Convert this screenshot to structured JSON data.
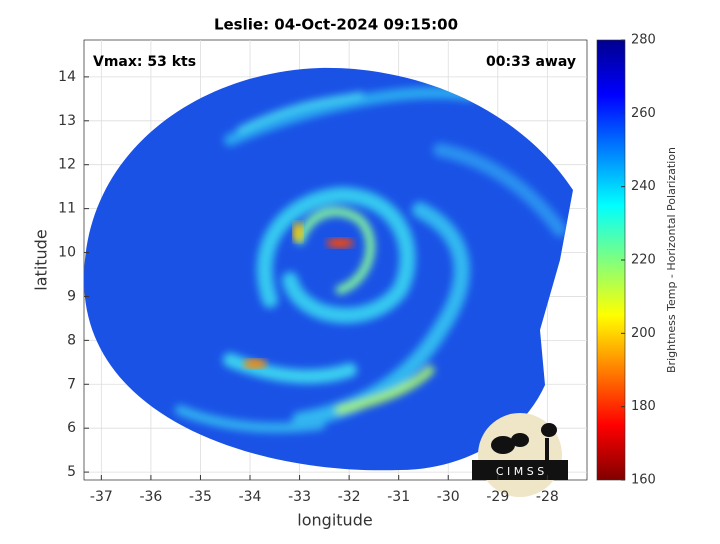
{
  "chart_data": {
    "type": "image",
    "title": "Leslie: 04-Oct-2024 09:15:00",
    "x_label": "longitude",
    "y_label": "latitude",
    "annotations": [
      "Vmax: 53 kts",
      "00:33 away"
    ],
    "xlim": [
      -37.35,
      -27.2
    ],
    "xticks": [
      -37,
      -36,
      -35,
      -34,
      -33,
      -32,
      -31,
      -30,
      -29,
      -28
    ],
    "ylim": [
      4.82,
      14.84
    ],
    "yticks": [
      5,
      6,
      7,
      8,
      9,
      10,
      11,
      12,
      13,
      14
    ],
    "grid": true,
    "colorbar": {
      "label": "Brightness Temp - Horizontal Polarization",
      "lim": [
        160,
        280
      ],
      "ticks": [
        160,
        180,
        200,
        220,
        240,
        260,
        280
      ],
      "colormap": "jet"
    },
    "logo_text": "C I M S S"
  }
}
